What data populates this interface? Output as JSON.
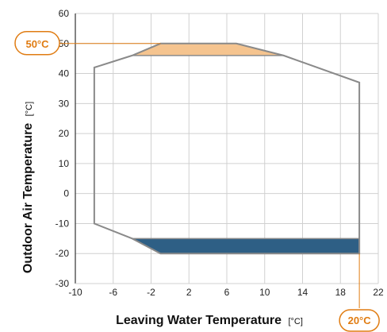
{
  "chart_data": {
    "type": "area",
    "xlabel": "Leaving Water Temperature",
    "xunit": "[°C]",
    "ylabel": "Outdoor Air Temperature",
    "yunit": "[°C]",
    "xlim": [
      -10,
      22
    ],
    "ylim": [
      -30,
      60
    ],
    "x_ticks": [
      -10,
      -6,
      -2,
      2,
      6,
      10,
      14,
      18,
      22
    ],
    "y_ticks": [
      -30,
      -20,
      -10,
      0,
      10,
      20,
      30,
      40,
      50,
      60
    ],
    "grid": true,
    "envelope": [
      {
        "x": -8,
        "y": 42
      },
      {
        "x": -4,
        "y": 46
      },
      {
        "x": -1,
        "y": 50
      },
      {
        "x": 7,
        "y": 50
      },
      {
        "x": 12,
        "y": 46
      },
      {
        "x": 20,
        "y": 37
      },
      {
        "x": 20,
        "y": -20
      },
      {
        "x": -1,
        "y": -20
      },
      {
        "x": -4,
        "y": -15
      },
      {
        "x": -8,
        "y": -10
      }
    ],
    "regions": [
      {
        "fill": "#f5c48f",
        "stroke": "#8a8a8a",
        "points": [
          {
            "x": -4,
            "y": 46
          },
          {
            "x": -1,
            "y": 50
          },
          {
            "x": 7,
            "y": 50
          },
          {
            "x": 12,
            "y": 46
          }
        ]
      },
      {
        "fill": "#2e5f85",
        "stroke": "#8a8a8a",
        "points": [
          {
            "x": -4,
            "y": -15
          },
          {
            "x": 20,
            "y": -15
          },
          {
            "x": 20,
            "y": -20
          },
          {
            "x": -1,
            "y": -20
          }
        ]
      }
    ],
    "annotations": [
      {
        "text": "50°C",
        "x_ref": -10,
        "y_ref": 50,
        "color": "#e07c12"
      },
      {
        "text": "20°C",
        "x_ref": 20,
        "y_ref": -30,
        "color": "#e07c12"
      }
    ],
    "colors": {
      "envelope": "#8a8a8a",
      "grid": "#d0d0d0",
      "axis": "#333333",
      "callout": "#e07c12"
    }
  }
}
